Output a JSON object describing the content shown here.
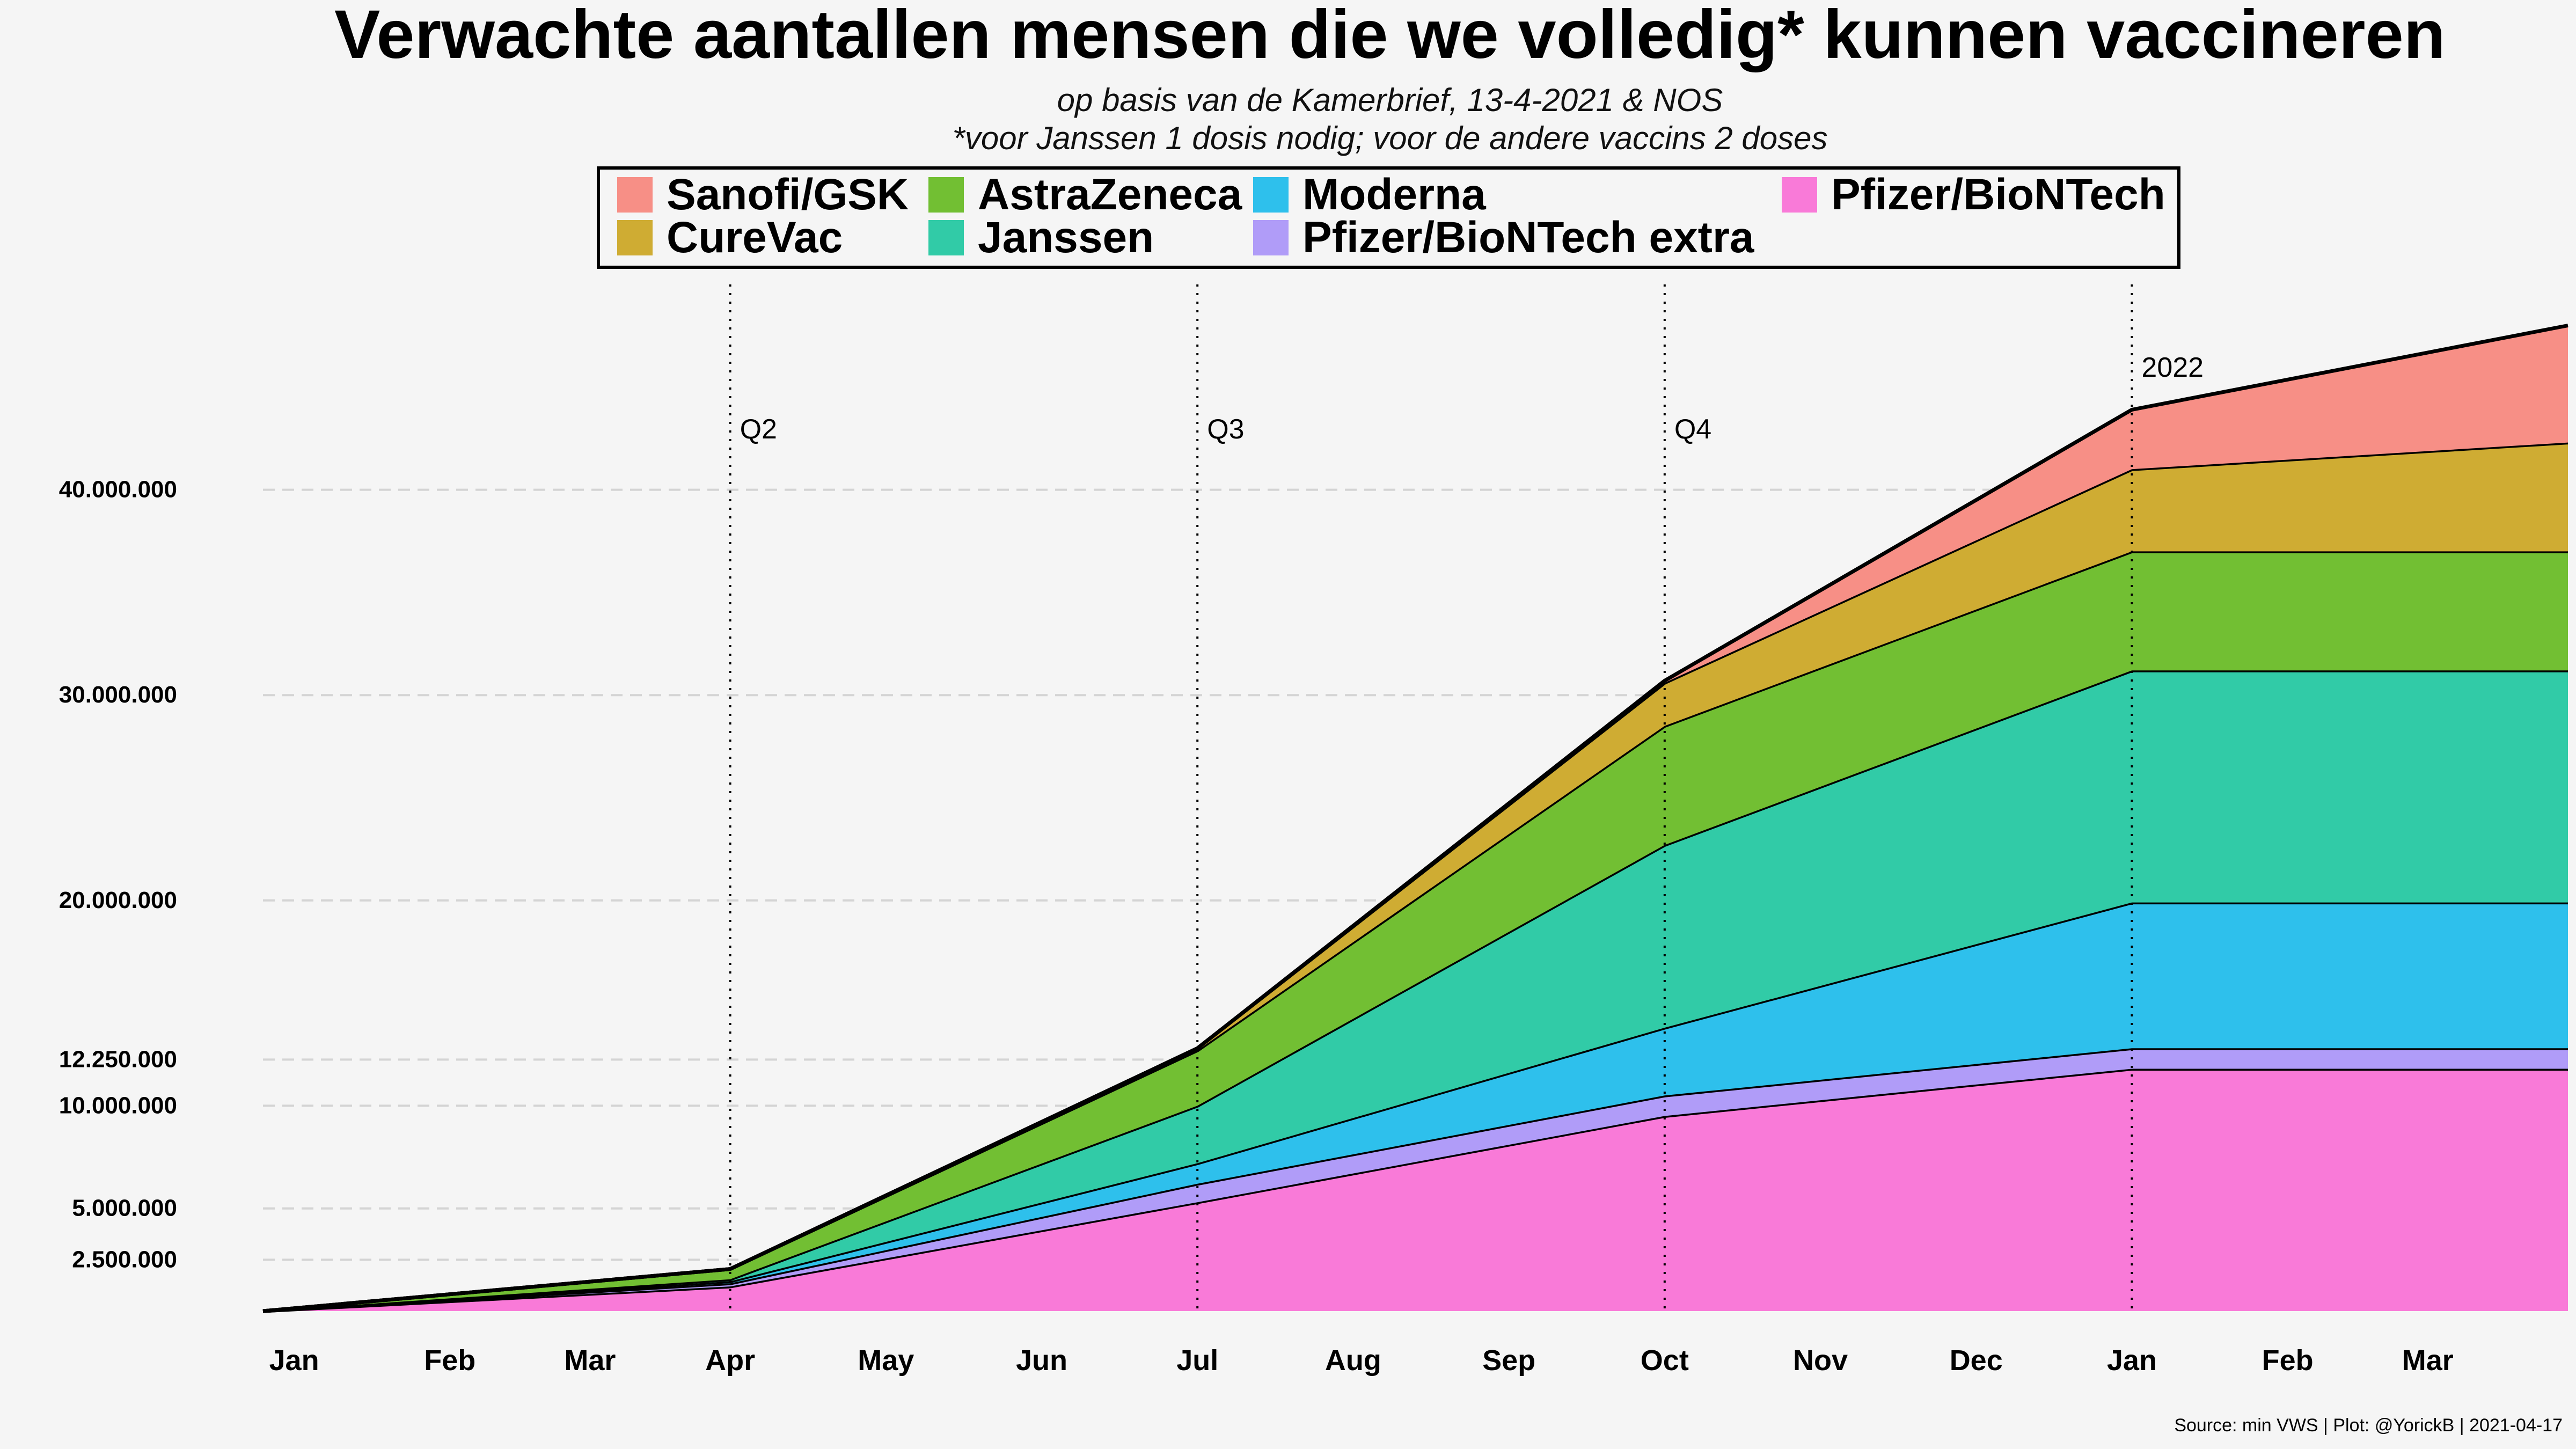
{
  "chart_data": {
    "type": "area",
    "title": "Verwachte aantallen mensen die we volledig* kunnen vaccineren",
    "subtitle_lines": [
      "op basis van de Kamerbrief, 13-4-2021 & NOS",
      "*voor Janssen 1 dosis nodig; voor de andere vaccins 2 doses"
    ],
    "caption": "Source: min VWS | Plot: @YorickB |  2021-04-17",
    "xlabel": "",
    "ylabel": "",
    "x_tick_labels": [
      "Jan",
      "Feb",
      "Mar",
      "Apr",
      "May",
      "Jun",
      "Jul",
      "Aug",
      "Sep",
      "Oct",
      "Nov",
      "Dec",
      "Jan",
      "Feb",
      "Mar"
    ],
    "x_tick_months": [
      0.2,
      1.2,
      2.1,
      3.0,
      4.0,
      5.0,
      6.0,
      7.0,
      8.0,
      9.0,
      10.0,
      11.0,
      12.0,
      13.0,
      13.9
    ],
    "xlim_months": [
      0,
      14.8
    ],
    "y_ticks": [
      2500000,
      5000000,
      10000000,
      12250000,
      20000000,
      30000000,
      40000000
    ],
    "y_tick_labels": [
      "2.500.000",
      "5.000.000",
      "10.000.000",
      "12.250.000",
      "20.000.000",
      "30.000.000",
      "40.000.000"
    ],
    "ylim": [
      0,
      50000000
    ],
    "vlines": [
      {
        "label": "Q2",
        "month": 3.0,
        "label_value": 42500000
      },
      {
        "label": "Q3",
        "month": 6.0,
        "label_value": 42500000
      },
      {
        "label": "Q4",
        "month": 9.0,
        "label_value": 42500000
      },
      {
        "label": "2022",
        "month": 12.0,
        "label_value": 45500000
      }
    ],
    "x_months": [
      0.0,
      3.0,
      6.0,
      9.0,
      12.0,
      14.8
    ],
    "series": [
      {
        "name": "Pfizer/BioNTech",
        "color": "#f97ad8",
        "values": [
          0,
          1200000,
          5300000,
          9500000,
          11800000,
          11800000
        ]
      },
      {
        "name": "Pfizer/BioNTech extra",
        "color": "#b09cf8",
        "values": [
          0,
          150000,
          900000,
          1000000,
          1000000,
          1000000
        ]
      },
      {
        "name": "Moderna",
        "color": "#2ec0ec",
        "values": [
          0,
          100000,
          1000000,
          3300000,
          7100000,
          7100000
        ]
      },
      {
        "name": "Janssen",
        "color": "#31cba7",
        "values": [
          0,
          100000,
          2800000,
          8900000,
          11300000,
          11300000
        ]
      },
      {
        "name": "AstraZeneca",
        "color": "#72bf33",
        "values": [
          0,
          500000,
          2700000,
          5800000,
          5800000,
          5800000
        ]
      },
      {
        "name": "CureVac",
        "color": "#cfac33",
        "values": [
          0,
          0,
          100000,
          2100000,
          4000000,
          5300000
        ]
      },
      {
        "name": "Sanofi/GSK",
        "color": "#f78f86",
        "values": [
          0,
          0,
          0,
          100000,
          2900000,
          5700000
        ]
      }
    ],
    "legend": {
      "position": "top",
      "rows": [
        [
          "Sanofi/GSK",
          "AstraZeneca",
          "Moderna",
          "Pfizer/BioNTech"
        ],
        [
          "CureVac",
          "Janssen",
          "Pfizer/BioNTech extra"
        ]
      ]
    },
    "grid": "horizontal-dashed"
  }
}
